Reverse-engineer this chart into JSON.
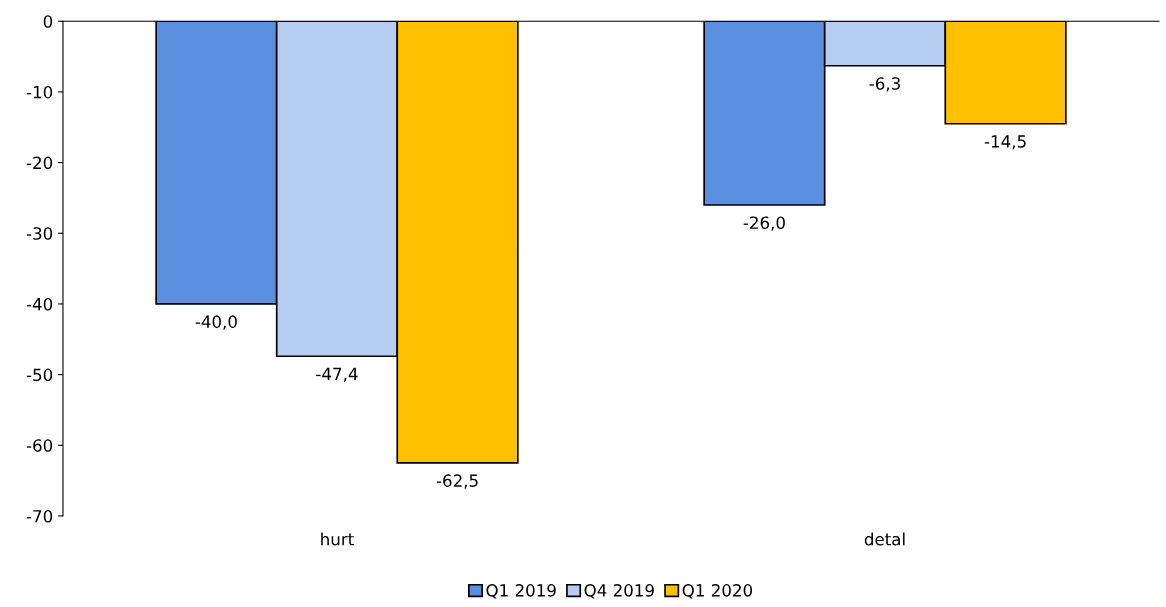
{
  "chart_data": {
    "type": "bar",
    "categories": [
      "hurt",
      "detal"
    ],
    "series": [
      {
        "name": "Q1 2019",
        "color": "#5b8fe0",
        "values": [
          -40.0,
          -26.0
        ],
        "value_labels": [
          "-40,0",
          "-26,0"
        ]
      },
      {
        "name": "Q4 2019",
        "color": "#b4cdf0",
        "values": [
          -47.4,
          -6.3
        ],
        "value_labels": [
          "-47,4",
          "-6,3"
        ]
      },
      {
        "name": "Q1 2020",
        "color": "#ffc000",
        "values": [
          -62.5,
          -14.5
        ],
        "value_labels": [
          "-62,5",
          "-14,5"
        ]
      }
    ],
    "ylim": [
      -70,
      0
    ],
    "yticks": [
      -70,
      -60,
      -50,
      -40,
      -30,
      -20,
      -10,
      0
    ],
    "grid": false,
    "legend": "bottom"
  }
}
